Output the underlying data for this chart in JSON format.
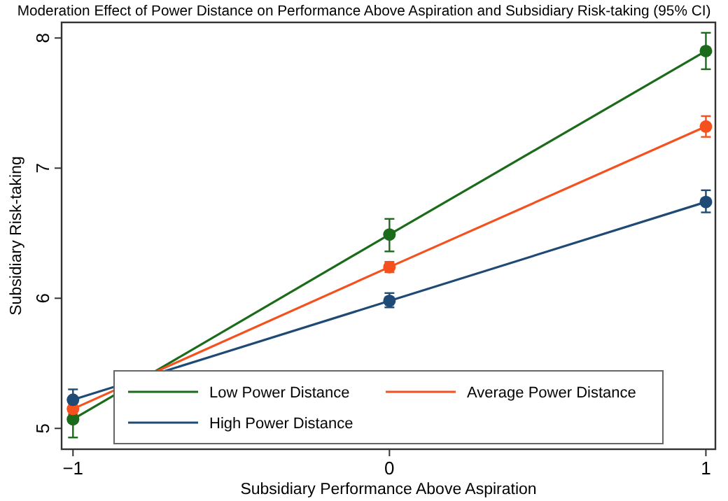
{
  "chart_data": {
    "type": "line",
    "title": "Moderation Effect of Power Distance on Performance Above Aspiration and Subsidiary Risk-taking (95% CI)",
    "xlabel": "Subsidiary Performance Above Aspiration",
    "ylabel": "Subsidiary Risk-taking",
    "x": [
      -1,
      0,
      1
    ],
    "xlim": [
      -1.036,
      1.03
    ],
    "xticks": [
      {
        "value": -1,
        "label": "−1"
      },
      0,
      1
    ],
    "ylim": [
      4.84,
      8.12
    ],
    "yticks": [
      5,
      6,
      7,
      8
    ],
    "grid": false,
    "legend": "bottom",
    "marker": "circle",
    "line_style": "solid",
    "series": [
      {
        "name": "Low Power Distance",
        "color": "#1b6b1b",
        "values": [
          5.07,
          6.49,
          7.9
        ],
        "errors": [
          [
            4.93,
            5.21
          ],
          [
            6.36,
            6.61
          ],
          [
            7.76,
            8.04
          ]
        ]
      },
      {
        "name": "Average Power Distance",
        "color": "#f4511e",
        "values": [
          5.15,
          6.24,
          7.32
        ],
        "errors": [
          [
            5.11,
            5.19
          ],
          [
            6.2,
            6.28
          ],
          [
            7.24,
            7.4
          ]
        ]
      },
      {
        "name": "High Power Distance",
        "color": "#1f4a75",
        "values": [
          5.22,
          5.98,
          6.74
        ],
        "errors": [
          [
            5.14,
            5.3
          ],
          [
            5.93,
            6.04
          ],
          [
            6.66,
            6.83
          ]
        ]
      }
    ]
  }
}
